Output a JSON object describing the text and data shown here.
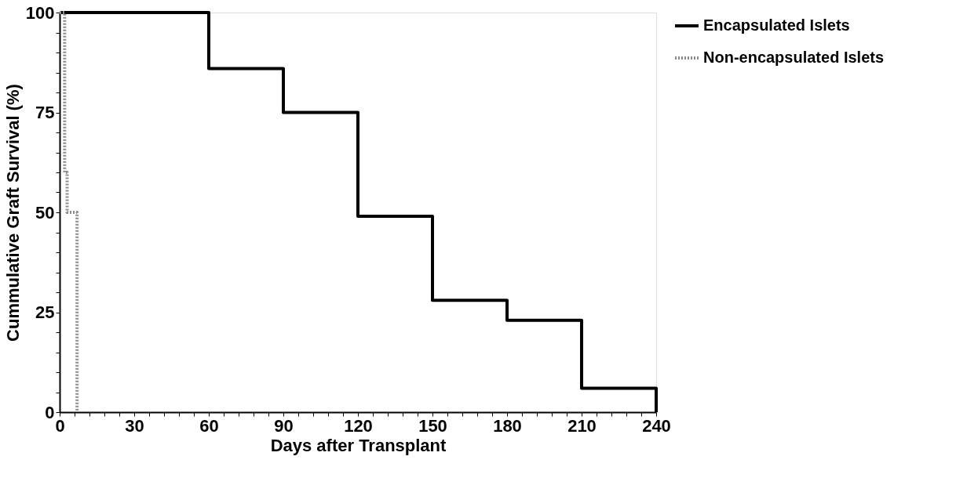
{
  "chart_data": {
    "type": "step",
    "xlabel": "Days after Transplant",
    "ylabel": "Cummulative Graft Survival (%)",
    "series": [
      {
        "name": "Encapsulated Islets",
        "color": "#000000",
        "line_style": "solid",
        "x": [
          0,
          60,
          90,
          120,
          150,
          180,
          210,
          240
        ],
        "values": [
          100,
          86,
          75,
          49,
          28,
          23,
          6,
          0
        ]
      },
      {
        "name": "Non-encapsulated Islets",
        "color": "#8c8c8c",
        "line_style": "dotted",
        "x": [
          0,
          2,
          3,
          7
        ],
        "values": [
          100,
          60,
          50,
          0
        ]
      }
    ],
    "xlim": [
      0,
      240
    ],
    "ylim": [
      0,
      100
    ],
    "xticks": [
      0,
      {
        "value": 6,
        "label": null
      },
      {
        "value": 12,
        "label": null
      },
      {
        "value": 18,
        "label": null
      },
      {
        "value": 24,
        "label": null
      },
      30,
      {
        "value": 36,
        "label": null
      },
      {
        "value": 42,
        "label": null
      },
      {
        "value": 48,
        "label": null
      },
      {
        "value": 54,
        "label": null
      },
      60,
      {
        "value": 66,
        "label": null
      },
      {
        "value": 72,
        "label": null
      },
      {
        "value": 78,
        "label": null
      },
      {
        "value": 84,
        "label": null
      },
      90,
      {
        "value": 96,
        "label": null
      },
      {
        "value": 102,
        "label": null
      },
      {
        "value": 108,
        "label": null
      },
      {
        "value": 114,
        "label": null
      },
      120,
      {
        "value": 126,
        "label": null
      },
      {
        "value": 132,
        "label": null
      },
      {
        "value": 138,
        "label": null
      },
      {
        "value": 144,
        "label": null
      },
      150,
      {
        "value": 156,
        "label": null
      },
      {
        "value": 162,
        "label": null
      },
      {
        "value": 168,
        "label": null
      },
      {
        "value": 174,
        "label": null
      },
      180,
      {
        "value": 186,
        "label": null
      },
      {
        "value": 192,
        "label": null
      },
      {
        "value": 198,
        "label": null
      },
      {
        "value": 204,
        "label": null
      },
      210,
      {
        "value": 216,
        "label": null
      },
      {
        "value": 222,
        "label": null
      },
      {
        "value": 228,
        "label": null
      },
      {
        "value": 234,
        "label": null
      },
      240
    ],
    "yticks": [
      0,
      {
        "value": 5,
        "label": null
      },
      {
        "value": 10,
        "label": null
      },
      {
        "value": 15,
        "label": null
      },
      {
        "value": 20,
        "label": null
      },
      25,
      {
        "value": 30,
        "label": null
      },
      {
        "value": 35,
        "label": null
      },
      {
        "value": 40,
        "label": null
      },
      {
        "value": 45,
        "label": null
      },
      50,
      {
        "value": 55,
        "label": null
      },
      {
        "value": 60,
        "label": null
      },
      {
        "value": 65,
        "label": null
      },
      {
        "value": 70,
        "label": null
      },
      75,
      {
        "value": 80,
        "label": null
      },
      {
        "value": 85,
        "label": null
      },
      {
        "value": 90,
        "label": null
      },
      {
        "value": 95,
        "label": null
      },
      100
    ],
    "grid": false,
    "legend": "top right",
    "marker": "none"
  }
}
